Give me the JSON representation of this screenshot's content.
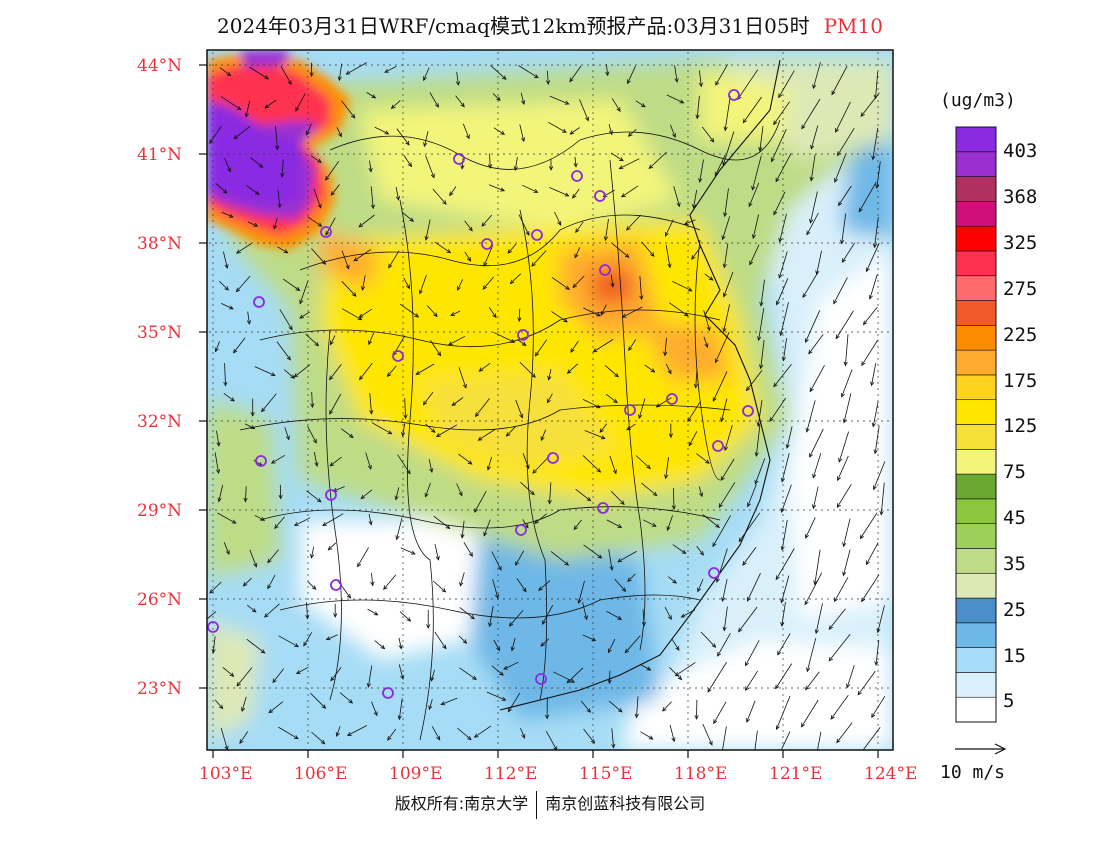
{
  "title": {
    "prefix": "2024年03月31日WRF/cmaq模式12km预报产品:03月31日05时",
    "variable": "PM10"
  },
  "lat_labels": [
    "44°N",
    "41°N",
    "38°N",
    "35°N",
    "32°N",
    "29°N",
    "26°N",
    "23°N"
  ],
  "lon_labels": [
    "103°E",
    "106°E",
    "109°E",
    "112°E",
    "115°E",
    "118°E",
    "121°E",
    "124°E"
  ],
  "colorbar": {
    "units": "(ug/m3)",
    "colors": [
      "#ffffff",
      "#d9f0fb",
      "#a6dcf5",
      "#6eb7e6",
      "#4a8fc8",
      "#dde9b5",
      "#bedc86",
      "#9bd05a",
      "#8cc63f",
      "#6aa832",
      "#f3f57a",
      "#f7e03a",
      "#ffe600",
      "#ffd21e",
      "#ffac2e",
      "#ff8c00",
      "#f05a28",
      "#ff6a6a",
      "#ff3050",
      "#ff0000",
      "#d0107a",
      "#b03060",
      "#9b30d0",
      "#8a2be2"
    ],
    "labels": [
      "5",
      "15",
      "25",
      "35",
      "45",
      "75",
      "125",
      "175",
      "225",
      "275",
      "325",
      "368",
      "403"
    ]
  },
  "wind_reference": "10 m/s",
  "copyright": {
    "left": "版权所有:南京大学",
    "right": "南京创蓝科技有限公司"
  }
}
